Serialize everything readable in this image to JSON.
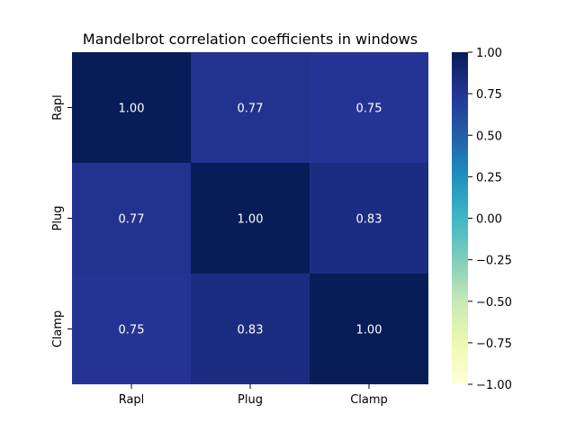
{
  "chart_data": {
    "type": "heatmap",
    "title": "Mandelbrot correlation coefficients in windows",
    "xlabel": "",
    "ylabel": "",
    "x_categories": [
      "Rapl",
      "Plug",
      "Clamp"
    ],
    "y_categories": [
      "Rapl",
      "Plug",
      "Clamp"
    ],
    "values": [
      [
        1.0,
        0.77,
        0.75
      ],
      [
        0.77,
        1.0,
        0.83
      ],
      [
        0.75,
        0.83,
        1.0
      ]
    ],
    "value_labels": [
      [
        "1.00",
        "0.77",
        "0.75"
      ],
      [
        "0.77",
        "1.00",
        "0.83"
      ],
      [
        "0.75",
        "0.83",
        "1.00"
      ]
    ],
    "colormap": "YlGnBu",
    "vmin": -1.0,
    "vmax": 1.0,
    "colorbar": {
      "ticks": [
        1.0,
        0.75,
        0.5,
        0.25,
        0.0,
        -0.25,
        -0.5,
        -0.75,
        -1.0
      ],
      "tick_labels": [
        "1.00",
        "0.75",
        "0.50",
        "0.25",
        "0.00",
        "−0.25",
        "−0.50",
        "−0.75",
        "−1.00"
      ]
    }
  }
}
